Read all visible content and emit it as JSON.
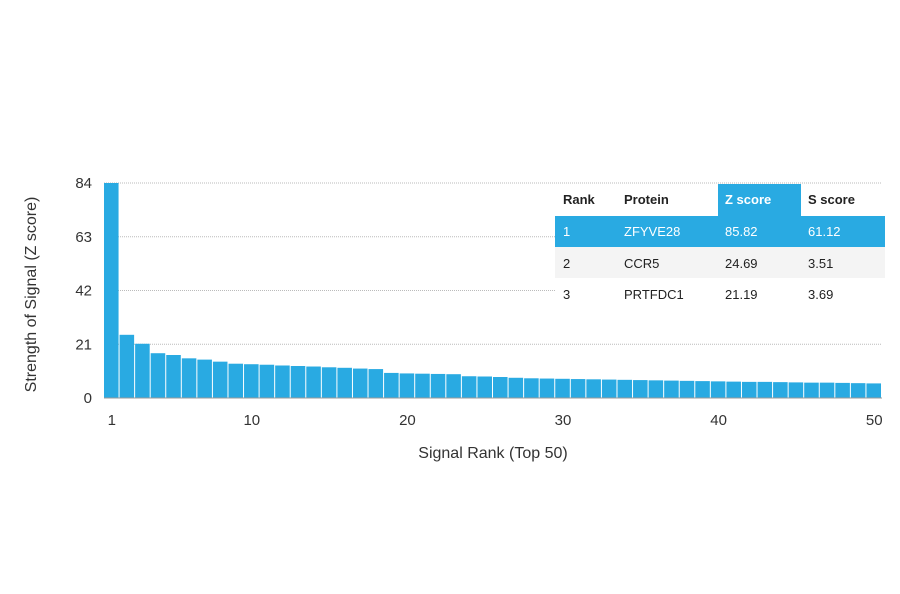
{
  "chart_data": {
    "type": "bar",
    "xlabel": "Signal Rank (Top 50)",
    "ylabel": "Strength of Signal (Z score)",
    "ylim": [
      0,
      84
    ],
    "yticks": [
      0,
      21,
      42,
      63,
      84
    ],
    "xticks": [
      1,
      10,
      20,
      30,
      40,
      50
    ],
    "grid": "horizontal dotted",
    "colors": {
      "bar": "#29aae2",
      "highlight": "#29aae2",
      "grid": "#bbbbbb"
    },
    "values": [
      85.82,
      24.69,
      21.19,
      17.5,
      16.8,
      15.5,
      15.0,
      14.2,
      13.4,
      13.2,
      13.0,
      12.7,
      12.5,
      12.3,
      12.0,
      11.8,
      11.5,
      11.3,
      9.8,
      9.6,
      9.5,
      9.4,
      9.3,
      8.5,
      8.4,
      8.2,
      7.9,
      7.7,
      7.6,
      7.5,
      7.4,
      7.3,
      7.2,
      7.1,
      7.0,
      6.9,
      6.8,
      6.7,
      6.6,
      6.5,
      6.4,
      6.3,
      6.3,
      6.2,
      6.1,
      6.0,
      6.0,
      5.9,
      5.8,
      5.7
    ]
  },
  "table": {
    "headers": [
      "Rank",
      "Protein",
      "Z score",
      "S score"
    ],
    "rows": [
      [
        "1",
        "ZFYVE28",
        "85.82",
        "61.12"
      ],
      [
        "2",
        "CCR5",
        "24.69",
        "3.51"
      ],
      [
        "3",
        "PRTFDC1",
        "21.19",
        "3.69"
      ]
    ]
  }
}
